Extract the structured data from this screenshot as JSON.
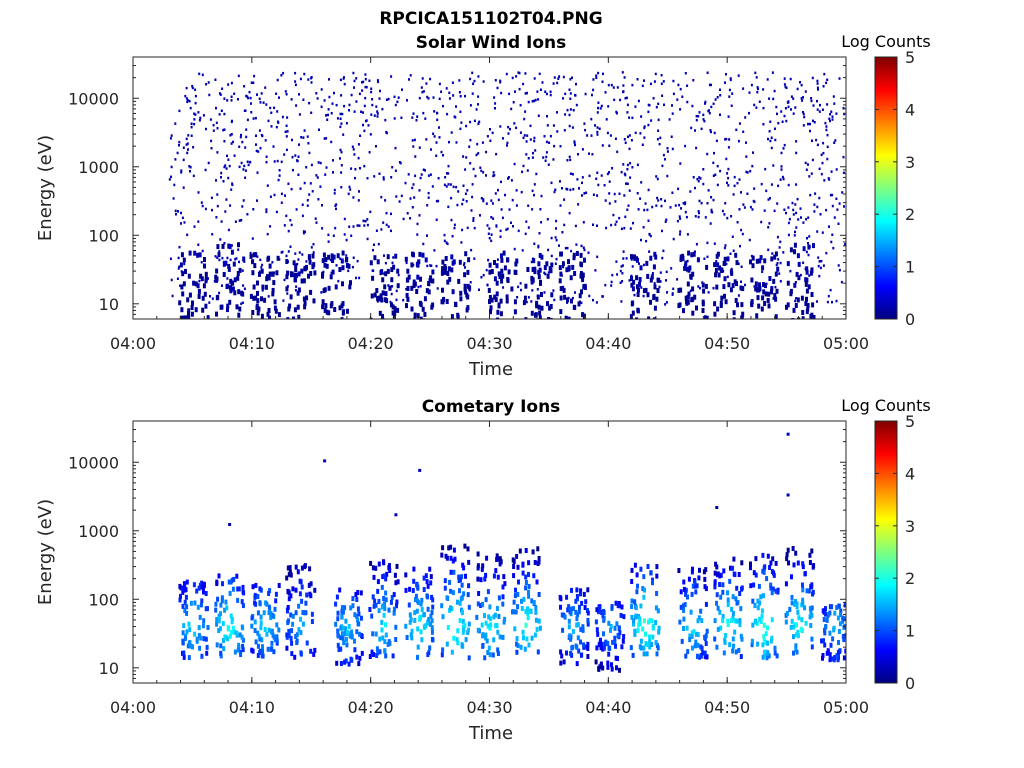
{
  "figure_title": "RPCICA151102T04.PNG",
  "chart_data": [
    {
      "type": "heatmap",
      "title": "Solar Wind Ions",
      "xlabel": "Time",
      "ylabel": "Energy (eV)",
      "xlim": [
        "04:00",
        "05:00"
      ],
      "x_ticks": [
        "04:00",
        "04:10",
        "04:20",
        "04:30",
        "04:40",
        "04:50",
        "05:00"
      ],
      "y_scale": "log",
      "ylim": [
        6,
        40000
      ],
      "y_ticks": [
        "10",
        "100",
        "1000",
        "10000"
      ],
      "colorbar": {
        "label": "Log Counts",
        "range": [
          0,
          5
        ],
        "ticks": [
          "0",
          "1",
          "2",
          "3",
          "4",
          "5"
        ],
        "colormap": "jet"
      },
      "data_start": "04:03",
      "description_values": "sparse low-count (log counts ~0) events scattered from 10 eV to 20000 eV, denser below 100 eV",
      "bursts": [
        {
          "time": "04:05",
          "e_min": 6,
          "e_max": 60,
          "level": 0.2
        },
        {
          "time": "04:08",
          "e_min": 6,
          "e_max": 80,
          "level": 0.25
        },
        {
          "time": "04:11",
          "e_min": 6,
          "e_max": 60,
          "level": 0.2
        },
        {
          "time": "04:14",
          "e_min": 6,
          "e_max": 60,
          "level": 0.2
        },
        {
          "time": "04:17",
          "e_min": 6,
          "e_max": 60,
          "level": 0.2
        },
        {
          "time": "04:21",
          "e_min": 6,
          "e_max": 60,
          "level": 0.2
        },
        {
          "time": "04:24",
          "e_min": 6,
          "e_max": 60,
          "level": 0.25
        },
        {
          "time": "04:27",
          "e_min": 6,
          "e_max": 60,
          "level": 0.25
        },
        {
          "time": "04:31",
          "e_min": 6,
          "e_max": 60,
          "level": 0.2
        },
        {
          "time": "04:34",
          "e_min": 6,
          "e_max": 60,
          "level": 0.2
        },
        {
          "time": "04:37",
          "e_min": 6,
          "e_max": 60,
          "level": 0.2
        },
        {
          "time": "04:43",
          "e_min": 6,
          "e_max": 60,
          "level": 0.25
        },
        {
          "time": "04:47",
          "e_min": 6,
          "e_max": 60,
          "level": 0.2
        },
        {
          "time": "04:50",
          "e_min": 6,
          "e_max": 60,
          "level": 0.2
        },
        {
          "time": "04:53",
          "e_min": 6,
          "e_max": 60,
          "level": 0.2
        },
        {
          "time": "04:56",
          "e_min": 6,
          "e_max": 80,
          "level": 0.25
        }
      ]
    },
    {
      "type": "heatmap",
      "title": "Cometary Ions",
      "xlabel": "Time",
      "ylabel": "Energy (eV)",
      "xlim": [
        "04:00",
        "05:00"
      ],
      "x_ticks": [
        "04:00",
        "04:10",
        "04:20",
        "04:30",
        "04:40",
        "04:50",
        "05:00"
      ],
      "y_scale": "log",
      "ylim": [
        6,
        40000
      ],
      "y_ticks": [
        "10",
        "100",
        "1000",
        "10000"
      ],
      "colorbar": {
        "label": "Log Counts",
        "range": [
          0,
          5
        ],
        "ticks": [
          "0",
          "1",
          "2",
          "3",
          "4",
          "5"
        ],
        "colormap": "jet"
      },
      "data_start": "04:03",
      "bursts": [
        {
          "time": "04:05",
          "e_min": 15,
          "e_max": 200,
          "level": 1.8
        },
        {
          "time": "04:08",
          "e_min": 15,
          "e_max": 250,
          "level": 2.0
        },
        {
          "time": "04:11",
          "e_min": 15,
          "e_max": 180,
          "level": 1.8
        },
        {
          "time": "04:14",
          "e_min": 15,
          "e_max": 400,
          "level": 1.6
        },
        {
          "time": "04:18",
          "e_min": 12,
          "e_max": 150,
          "level": 1.7
        },
        {
          "time": "04:21",
          "e_min": 15,
          "e_max": 400,
          "level": 1.8
        },
        {
          "time": "04:24",
          "e_min": 15,
          "e_max": 300,
          "level": 1.9
        },
        {
          "time": "04:27",
          "e_min": 15,
          "e_max": 700,
          "level": 2.1
        },
        {
          "time": "04:30",
          "e_min": 15,
          "e_max": 500,
          "level": 1.9
        },
        {
          "time": "04:33",
          "e_min": 15,
          "e_max": 600,
          "level": 2.0
        },
        {
          "time": "04:37",
          "e_min": 12,
          "e_max": 150,
          "level": 1.6
        },
        {
          "time": "04:40",
          "e_min": 10,
          "e_max": 100,
          "level": 1.5
        },
        {
          "time": "04:43",
          "e_min": 15,
          "e_max": 350,
          "level": 2.1
        },
        {
          "time": "04:47",
          "e_min": 15,
          "e_max": 300,
          "level": 1.8
        },
        {
          "time": "04:50",
          "e_min": 15,
          "e_max": 500,
          "level": 2.0
        },
        {
          "time": "04:53",
          "e_min": 15,
          "e_max": 500,
          "level": 2.1
        },
        {
          "time": "04:56",
          "e_min": 15,
          "e_max": 600,
          "level": 2.0
        },
        {
          "time": "04:59",
          "e_min": 12,
          "e_max": 100,
          "level": 1.6
        }
      ],
      "isolated_points": [
        {
          "time": "04:08",
          "energy": 1300
        },
        {
          "time": "04:16",
          "energy": 11000
        },
        {
          "time": "04:22",
          "energy": 1800
        },
        {
          "time": "04:24",
          "energy": 8000
        },
        {
          "time": "04:49",
          "energy": 2300
        },
        {
          "time": "04:55",
          "energy": 27000
        },
        {
          "time": "04:55",
          "energy": 3500
        }
      ]
    }
  ]
}
